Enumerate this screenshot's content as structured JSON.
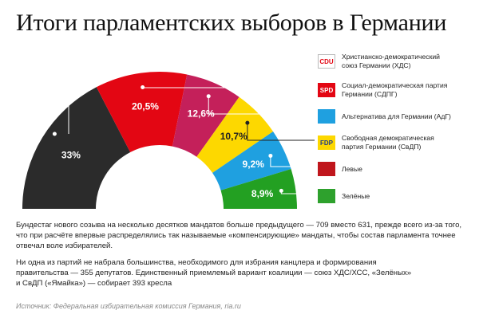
{
  "title": "Итоги парламентских выборов в Германии",
  "chart_data": {
    "type": "pie",
    "subtype": "semicircle-parliament",
    "title": "Итоги парламентских выборов в Германии",
    "unit": "%",
    "series": [
      {
        "name": "Христианско-демократический союз Германии (ХДС)",
        "value": 33,
        "label": "33%",
        "color": "#2b2b2b",
        "logo": "CDU"
      },
      {
        "name": "Социал-демократическая партия Германии (СДПГ)",
        "value": 20.5,
        "label": "20,5%",
        "color": "#e30613",
        "logo": "SPD"
      },
      {
        "name": "Альтернатива для Германии (АдГ)",
        "value": 12.6,
        "label": "12,6%",
        "color": "#c4205a",
        "logo": ""
      },
      {
        "name": "Свободная демократическая партия Германии (СвДП)",
        "value": 10.7,
        "label": "10,7%",
        "color": "#fdd800",
        "logo": "FDP"
      },
      {
        "name": "Левые",
        "value": 9.2,
        "label": "9,2%",
        "color": "#1fa0e0",
        "logo": ""
      },
      {
        "name": "Зелёные",
        "value": 8.9,
        "label": "8,9%",
        "color": "#23a022",
        "logo": ""
      }
    ]
  },
  "legend": [
    {
      "name": "Христианско-демократический\nсоюз Германии (ХДС)",
      "logo_text": "CDU",
      "logo_bg": "#ffffff",
      "logo_fg": "#e30613",
      "logo_border": "#bbbbbb"
    },
    {
      "name": "Социал-демократическая партия\nГермании (СДПГ)",
      "logo_text": "SPD",
      "logo_bg": "#e30613",
      "logo_fg": "#ffffff",
      "logo_border": "#e30613"
    },
    {
      "name": "Альтернатива для Германии (АдГ)",
      "logo_text": "",
      "logo_bg": "#1fa0e0",
      "logo_fg": "#ffffff",
      "logo_border": "#1fa0e0"
    },
    {
      "name": "Свободная демократическая\nпартия Германии (СвДП)",
      "logo_text": "FDP",
      "logo_bg": "#fdd800",
      "logo_fg": "#1f3a8a",
      "logo_border": "#fdd800"
    },
    {
      "name": "Левые",
      "logo_text": "",
      "logo_bg": "#c0161c",
      "logo_fg": "#ffffff",
      "logo_border": "#c0161c"
    },
    {
      "name": "Зелёные",
      "logo_text": "",
      "logo_bg": "#2ea12d",
      "logo_fg": "#ffef00",
      "logo_border": "#2ea12d"
    }
  ],
  "paragraphs": {
    "p1": "Бундестаг нового созыва на несколько десятков мандатов больше предыдущего — 709 вместо 631, прежде всего из-за того,\nчто при расчёте впервые распределялись так называемые «компенсирующие» мандаты, чтобы состав парламента точнее\nотвечал воле избирателей.",
    "p2": "Ни одна из партий не набрала большинства, необходимого для избрания канцлера и формирования\nправительства — 355 депутатов. Единственный приемлемый вариант коалиции — союз ХДС/ХСС, «Зелёных»\nи СвДП («Ямайка») — собирает 393 кресла"
  },
  "source": "Источник: Федеральная избирательная комиссия Германия, ria.ru"
}
